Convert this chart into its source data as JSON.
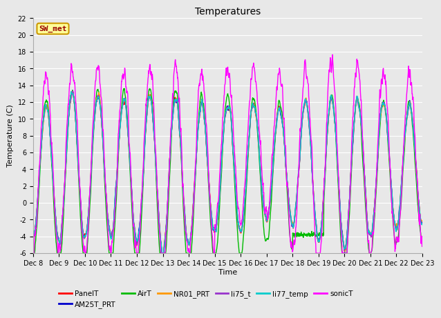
{
  "title": "Temperatures",
  "ylabel": "Temperature (C)",
  "xlabel": "Time",
  "ylim": [
    -6,
    22
  ],
  "yticks": [
    -6,
    -4,
    -2,
    0,
    2,
    4,
    6,
    8,
    10,
    12,
    14,
    16,
    18,
    20,
    22
  ],
  "x_labels": [
    "Dec 8",
    "Dec 9",
    "Dec 10",
    "Dec 11",
    "Dec 12",
    "Dec 13",
    "Dec 14",
    "Dec 15",
    "Dec 16",
    "Dec 17",
    "Dec 18",
    "Dec 19",
    "Dec 20",
    "Dec 21",
    "Dec 22",
    "Dec 23"
  ],
  "series": {
    "PanelT": {
      "color": "#ff0000",
      "lw": 1.0
    },
    "AM25T_PRT": {
      "color": "#0000cc",
      "lw": 1.0
    },
    "AirT": {
      "color": "#00bb00",
      "lw": 1.0
    },
    "NR01_PRT": {
      "color": "#ff9900",
      "lw": 1.0
    },
    "li75_t": {
      "color": "#9933cc",
      "lw": 1.0
    },
    "li77_temp": {
      "color": "#00cccc",
      "lw": 1.0
    },
    "sonicT": {
      "color": "#ff00ff",
      "lw": 1.0
    }
  },
  "sw_met_label": "SW_met",
  "sw_met_bg": "#ffff99",
  "sw_met_border": "#cc9900",
  "sw_met_text_color": "#990000",
  "plot_bg": "#e8e8e8",
  "fig_bg": "#e8e8e8",
  "grid_color": "#ffffff",
  "n_points": 1440,
  "legend_fontsize": 7.5,
  "title_fontsize": 10,
  "tick_fontsize": 7
}
